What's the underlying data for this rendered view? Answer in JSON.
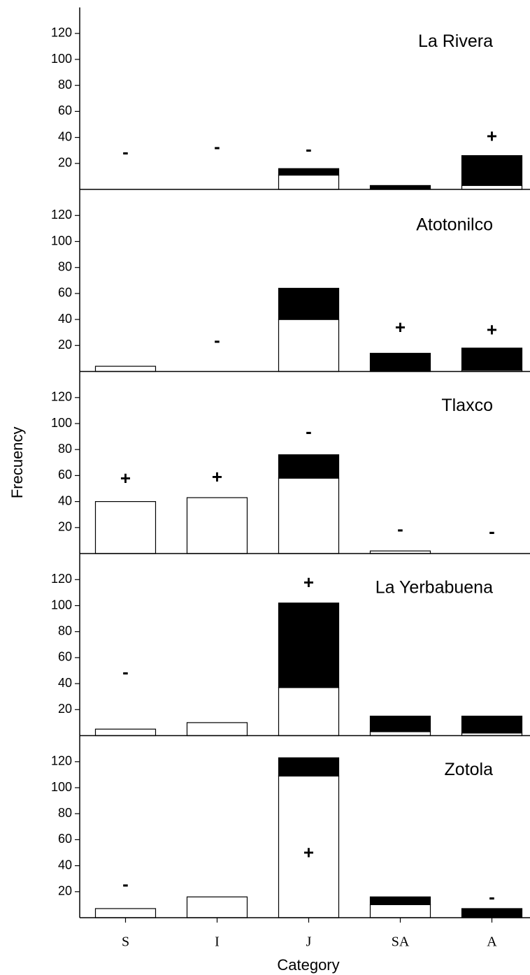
{
  "chart_data": [
    {
      "type": "bar",
      "title": "La Rivera",
      "ylim": [
        0,
        140
      ],
      "yticks": [
        20,
        40,
        60,
        80,
        100,
        120
      ],
      "series": [
        {
          "color": "#ffffff",
          "values": [
            0,
            0,
            11,
            0,
            3
          ]
        },
        {
          "color": "#000000",
          "values": [
            0,
            0,
            5,
            3,
            23
          ]
        }
      ],
      "signs": [
        "-",
        "-",
        "-",
        null,
        "+"
      ],
      "sign_values": [
        28,
        32,
        30,
        null,
        40
      ]
    },
    {
      "type": "bar",
      "title": "Atotonilco",
      "ylim": [
        0,
        140
      ],
      "yticks": [
        20,
        40,
        60,
        80,
        100,
        120
      ],
      "series": [
        {
          "color": "#ffffff",
          "values": [
            4,
            0,
            40,
            0,
            1
          ]
        },
        {
          "color": "#000000",
          "values": [
            0,
            0,
            24,
            14,
            17
          ]
        }
      ],
      "signs": [
        null,
        "-",
        null,
        "+",
        "+"
      ],
      "sign_values": [
        null,
        23,
        null,
        33,
        31
      ]
    },
    {
      "type": "bar",
      "title": "Tlaxco",
      "ylabel": "Frecuency",
      "ylim": [
        0,
        140
      ],
      "yticks": [
        20,
        40,
        60,
        80,
        100,
        120
      ],
      "series": [
        {
          "color": "#ffffff",
          "values": [
            40,
            43,
            58,
            2,
            0
          ]
        },
        {
          "color": "#000000",
          "values": [
            0,
            0,
            18,
            0,
            0
          ]
        }
      ],
      "signs": [
        "+",
        "+",
        "-",
        "-",
        "-"
      ],
      "sign_values": [
        57,
        58,
        93,
        18,
        16
      ]
    },
    {
      "type": "bar",
      "title": "La Yerbabuena",
      "ylim": [
        0,
        140
      ],
      "yticks": [
        20,
        40,
        60,
        80,
        100,
        120
      ],
      "series": [
        {
          "color": "#ffffff",
          "values": [
            5,
            10,
            37,
            3,
            2
          ]
        },
        {
          "color": "#000000",
          "values": [
            0,
            0,
            65,
            12,
            13
          ]
        }
      ],
      "signs": [
        "-",
        null,
        "+",
        null,
        null
      ],
      "sign_values": [
        48,
        null,
        117,
        null,
        null
      ]
    },
    {
      "type": "bar",
      "title": "Zotola",
      "xlabel": "Category",
      "categories": [
        "S",
        "I",
        "J",
        "SA",
        "A"
      ],
      "ylim": [
        0,
        140
      ],
      "yticks": [
        20,
        40,
        60,
        80,
        100,
        120
      ],
      "series": [
        {
          "color": "#ffffff",
          "values": [
            7,
            16,
            109,
            10,
            0
          ]
        },
        {
          "color": "#000000",
          "values": [
            0,
            0,
            14,
            6,
            7
          ]
        }
      ],
      "signs": [
        "-",
        null,
        "+",
        null,
        "-"
      ],
      "sign_values": [
        25,
        null,
        49,
        null,
        15
      ]
    }
  ]
}
